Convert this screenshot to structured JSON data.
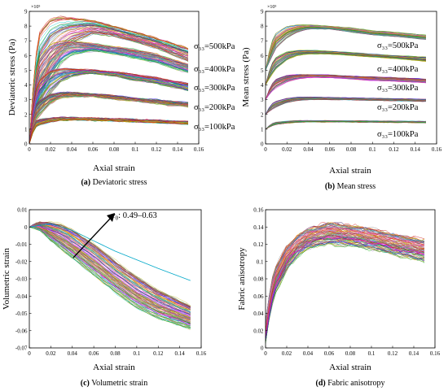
{
  "chart_data": [
    {
      "id": "a",
      "type": "line",
      "caption_letter": "(a)",
      "caption": "Deviatoric stress",
      "xlabel": "Axial strain",
      "ylabel": "Deviatoric stress (Pa)",
      "xlim": [
        0,
        0.16
      ],
      "ylim": [
        0,
        900000
      ],
      "xticks": [
        "0",
        "0.02",
        "0.04",
        "0.06",
        "0.08",
        "0.1",
        "0.12",
        "0.14",
        "0.16"
      ],
      "yticks": [
        "0",
        "1",
        "2",
        "3",
        "4",
        "5",
        "6",
        "7",
        "8",
        "9"
      ],
      "y_multiplier": "×10⁵",
      "annotations": [
        "σ₃₃=500kPa",
        "σ₃₃=400kPa",
        "σ₃₃=300kPa",
        "σ₃₃=200kPa",
        "σ₃₃=100kPa"
      ],
      "series": [
        {
          "group": "500kPa",
          "x": [
            0,
            0.005,
            0.01,
            0.02,
            0.03,
            0.04,
            0.06,
            0.08,
            0.1,
            0.12,
            0.15
          ],
          "y_band": [
            [
              0,
              0
            ],
            [
              200000,
              560000
            ],
            [
              300000,
              780000
            ],
            [
              480000,
              860000
            ],
            [
              600000,
              870000
            ],
            [
              680000,
              860000
            ],
            [
              750000,
              840000
            ],
            [
              730000,
              800000
            ],
            [
              690000,
              760000
            ],
            [
              650000,
              720000
            ],
            [
              560000,
              650000
            ]
          ]
        },
        {
          "group": "400kPa",
          "x": [
            0,
            0.005,
            0.01,
            0.02,
            0.03,
            0.04,
            0.06,
            0.08,
            0.1,
            0.12,
            0.15
          ],
          "y_band": [
            [
              0,
              0
            ],
            [
              180000,
              450000
            ],
            [
              260000,
              600000
            ],
            [
              420000,
              680000
            ],
            [
              540000,
              700000
            ],
            [
              600000,
              700000
            ],
            [
              630000,
              680000
            ],
            [
              610000,
              660000
            ],
            [
              580000,
              640000
            ],
            [
              550000,
              610000
            ],
            [
              480000,
              540000
            ]
          ]
        },
        {
          "group": "300kPa",
          "x": [
            0,
            0.005,
            0.01,
            0.02,
            0.03,
            0.04,
            0.06,
            0.08,
            0.1,
            0.12,
            0.15
          ],
          "y_band": [
            [
              0,
              0
            ],
            [
              160000,
              360000
            ],
            [
              220000,
              440000
            ],
            [
              340000,
              500000
            ],
            [
              420000,
              510000
            ],
            [
              460000,
              510000
            ],
            [
              480000,
              500000
            ],
            [
              460000,
              490000
            ],
            [
              430000,
              470000
            ],
            [
              410000,
              450000
            ],
            [
              360000,
              410000
            ]
          ]
        },
        {
          "group": "200kPa",
          "x": [
            0,
            0.005,
            0.01,
            0.02,
            0.03,
            0.04,
            0.06,
            0.08,
            0.1,
            0.12,
            0.15
          ],
          "y_band": [
            [
              0,
              0
            ],
            [
              140000,
              260000
            ],
            [
              190000,
              300000
            ],
            [
              270000,
              340000
            ],
            [
              310000,
              350000
            ],
            [
              320000,
              350000
            ],
            [
              320000,
              340000
            ],
            [
              300000,
              330000
            ],
            [
              290000,
              310000
            ],
            [
              270000,
              300000
            ],
            [
              250000,
              280000
            ]
          ]
        },
        {
          "group": "100kPa",
          "x": [
            0,
            0.005,
            0.01,
            0.02,
            0.03,
            0.04,
            0.06,
            0.08,
            0.1,
            0.12,
            0.15
          ],
          "y_band": [
            [
              0,
              0
            ],
            [
              110000,
              150000
            ],
            [
              130000,
              165000
            ],
            [
              150000,
              175000
            ],
            [
              160000,
              178000
            ],
            [
              163000,
              178000
            ],
            [
              160000,
              175000
            ],
            [
              155000,
              170000
            ],
            [
              150000,
              165000
            ],
            [
              145000,
              160000
            ],
            [
              135000,
              150000
            ]
          ]
        }
      ]
    },
    {
      "id": "b",
      "type": "line",
      "caption_letter": "(b)",
      "caption": "Mean stress",
      "xlabel": "Axial strain",
      "ylabel": "Mean stress (Pa)",
      "xlim": [
        0,
        0.16
      ],
      "ylim": [
        0,
        900000
      ],
      "xticks": [
        "0",
        "0.02",
        "0.04",
        "0.06",
        "0.08",
        "0.1",
        "0.12",
        "0.14",
        "0.16"
      ],
      "yticks": [
        "0",
        "1",
        "2",
        "3",
        "4",
        "5",
        "6",
        "7",
        "8",
        "9"
      ],
      "y_multiplier": "×10⁵",
      "annotations": [
        "σ₃₃=500kPa",
        "σ₃₃=400kPa",
        "σ₃₃=300kPa",
        "σ₃₃=200kPa",
        "σ₃₃=100kPa"
      ],
      "series": [
        {
          "group": "500kPa",
          "x": [
            0,
            0.005,
            0.01,
            0.02,
            0.03,
            0.04,
            0.06,
            0.08,
            0.1,
            0.12,
            0.15
          ],
          "y_band": [
            [
              500000,
              500000
            ],
            [
              580000,
              690000
            ],
            [
              650000,
              760000
            ],
            [
              720000,
              800000
            ],
            [
              760000,
              810000
            ],
            [
              780000,
              810000
            ],
            [
              780000,
              800000
            ],
            [
              760000,
              790000
            ],
            [
              740000,
              770000
            ],
            [
              730000,
              760000
            ],
            [
              710000,
              740000
            ]
          ]
        },
        {
          "group": "400kPa",
          "x": [
            0,
            0.005,
            0.01,
            0.02,
            0.03,
            0.04,
            0.06,
            0.08,
            0.1,
            0.12,
            0.15
          ],
          "y_band": [
            [
              400000,
              400000
            ],
            [
              460000,
              540000
            ],
            [
              510000,
              590000
            ],
            [
              570000,
              625000
            ],
            [
              600000,
              635000
            ],
            [
              610000,
              635000
            ],
            [
              610000,
              630000
            ],
            [
              600000,
              620000
            ],
            [
              590000,
              610000
            ],
            [
              580000,
              600000
            ],
            [
              560000,
              590000
            ]
          ]
        },
        {
          "group": "300kPa",
          "x": [
            0,
            0.005,
            0.01,
            0.02,
            0.03,
            0.04,
            0.06,
            0.08,
            0.1,
            0.12,
            0.15
          ],
          "y_band": [
            [
              300000,
              300000
            ],
            [
              350000,
              400000
            ],
            [
              380000,
              440000
            ],
            [
              420000,
              465000
            ],
            [
              440000,
              470000
            ],
            [
              450000,
              470000
            ],
            [
              450000,
              468000
            ],
            [
              440000,
              460000
            ],
            [
              430000,
              455000
            ],
            [
              425000,
              450000
            ],
            [
              415000,
              440000
            ]
          ]
        },
        {
          "group": "200kPa",
          "x": [
            0,
            0.005,
            0.01,
            0.02,
            0.03,
            0.04,
            0.06,
            0.08,
            0.1,
            0.12,
            0.15
          ],
          "y_band": [
            [
              200000,
              200000
            ],
            [
              230000,
              270000
            ],
            [
              250000,
              290000
            ],
            [
              280000,
              310000
            ],
            [
              295000,
              318000
            ],
            [
              300000,
              318000
            ],
            [
              300000,
              316000
            ],
            [
              298000,
              313000
            ],
            [
              295000,
              310000
            ],
            [
              292000,
              308000
            ],
            [
              288000,
              303000
            ]
          ]
        },
        {
          "group": "100kPa",
          "x": [
            0,
            0.005,
            0.01,
            0.02,
            0.03,
            0.04,
            0.06,
            0.08,
            0.1,
            0.12,
            0.15
          ],
          "y_band": [
            [
              100000,
              100000
            ],
            [
              120000,
              135000
            ],
            [
              130000,
              148000
            ],
            [
              140000,
              155000
            ],
            [
              146000,
              158000
            ],
            [
              148000,
              159000
            ],
            [
              148000,
              158000
            ],
            [
              147000,
              157000
            ],
            [
              146000,
              156000
            ],
            [
              145000,
              155000
            ],
            [
              143000,
              153000
            ]
          ]
        }
      ]
    },
    {
      "id": "c",
      "type": "line",
      "caption_letter": "(c)",
      "caption": "Volumetric strain",
      "xlabel": "Axial strain",
      "ylabel": "Volumetric strain",
      "xlim": [
        0,
        0.16
      ],
      "ylim": [
        -0.07,
        0.01
      ],
      "xticks": [
        "0",
        "0.02",
        "0.04",
        "0.06",
        "0.08",
        "0.1",
        "0.12",
        "0.14",
        "0.16"
      ],
      "yticks": [
        "-0.07",
        "-0.06",
        "-0.05",
        "-0.04",
        "-0.03",
        "-0.02",
        "-0.01",
        "0",
        "0.01"
      ],
      "annotation_e0_symbol": "e",
      "annotation_e0_sub": "0",
      "annotation_e0_range": ": 0.49–0.63",
      "series": [
        {
          "group": "all",
          "x": [
            0,
            0.005,
            0.01,
            0.02,
            0.03,
            0.04,
            0.06,
            0.08,
            0.1,
            0.12,
            0.14,
            0.15
          ],
          "y_band": [
            [
              0,
              0
            ],
            [
              -0.0005,
              0.002
            ],
            [
              -0.002,
              0.003
            ],
            [
              -0.008,
              0.003
            ],
            [
              -0.013,
              0.002
            ],
            [
              -0.018,
              -0.001
            ],
            [
              -0.028,
              -0.009
            ],
            [
              -0.038,
              -0.019
            ],
            [
              -0.047,
              -0.028
            ],
            [
              -0.053,
              -0.036
            ],
            [
              -0.057,
              -0.042
            ],
            [
              -0.059,
              -0.045
            ]
          ]
        },
        {
          "group": "outlier",
          "x": [
            0,
            0.02,
            0.04,
            0.06,
            0.08,
            0.1,
            0.12,
            0.15
          ],
          "y": [
            0,
            0.002,
            -0.002,
            -0.008,
            -0.014,
            -0.019,
            -0.024,
            -0.031
          ]
        }
      ]
    },
    {
      "id": "d",
      "type": "line",
      "caption_letter": "(d)",
      "caption": "Fabric anisotropy",
      "xlabel": "Axial strain",
      "ylabel": "Fabric anisotropy",
      "xlim": [
        0,
        0.16
      ],
      "ylim": [
        0,
        0.16
      ],
      "xticks": [
        "0",
        "0.02",
        "0.04",
        "0.06",
        "0.08",
        "0.1",
        "0.12",
        "0.14",
        "0.16"
      ],
      "yticks": [
        "0",
        "0.02",
        "0.04",
        "0.06",
        "0.08",
        "0.1",
        "0.12",
        "0.14",
        "0.16"
      ],
      "series": [
        {
          "group": "all",
          "x": [
            0,
            0.005,
            0.01,
            0.02,
            0.03,
            0.04,
            0.06,
            0.08,
            0.1,
            0.12,
            0.15
          ],
          "y_band": [
            [
              0.005,
              0.03
            ],
            [
              0.045,
              0.075
            ],
            [
              0.065,
              0.095
            ],
            [
              0.09,
              0.118
            ],
            [
              0.105,
              0.13
            ],
            [
              0.115,
              0.138
            ],
            [
              0.12,
              0.145
            ],
            [
              0.118,
              0.142
            ],
            [
              0.114,
              0.138
            ],
            [
              0.108,
              0.132
            ],
            [
              0.1,
              0.125
            ]
          ]
        }
      ]
    }
  ]
}
